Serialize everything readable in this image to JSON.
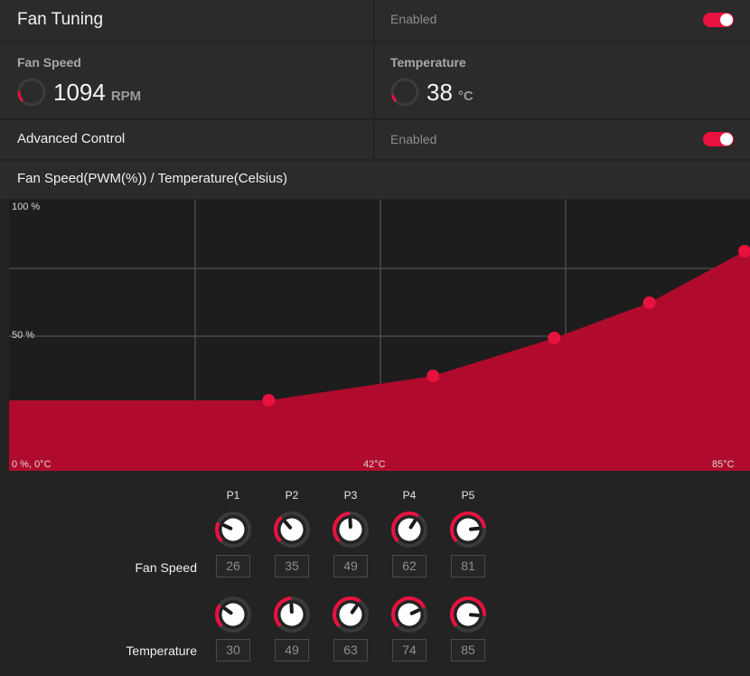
{
  "header": {
    "title": "Fan Tuning",
    "status": "Enabled",
    "toggle_on": true
  },
  "fan_speed": {
    "label": "Fan Speed",
    "value": "1094",
    "unit": "RPM",
    "gauge_fraction": 0.18
  },
  "temperature": {
    "label": "Temperature",
    "value": "38",
    "unit": "°C",
    "gauge_fraction": 0.12
  },
  "advanced": {
    "label": "Advanced Control",
    "status": "Enabled",
    "toggle_on": true
  },
  "chart_section": {
    "title": "Fan Speed(PWM(%)) / Temperature(Celsius)"
  },
  "colors": {
    "accent": "#e8123f",
    "fill": "#b00b2d",
    "background": "#232323",
    "panel": "#2b2b2b",
    "grid": "#4a4a4a"
  },
  "chart_data": {
    "type": "area",
    "title": "",
    "xlabel": "",
    "ylabel": "",
    "xlim": [
      0,
      85
    ],
    "ylim": [
      0,
      100
    ],
    "y_tick_labels": [
      "100 %",
      "50 %",
      "0 %, 0°C"
    ],
    "x_tick_labels": [
      "42°C",
      "85°C"
    ],
    "grid": true,
    "points": [
      {
        "name": "P1",
        "temperature": 30,
        "fan_speed": 26
      },
      {
        "name": "P2",
        "temperature": 49,
        "fan_speed": 35
      },
      {
        "name": "P3",
        "temperature": 63,
        "fan_speed": 49
      },
      {
        "name": "P4",
        "temperature": 74,
        "fan_speed": 62
      },
      {
        "name": "P5",
        "temperature": 85,
        "fan_speed": 81
      }
    ]
  },
  "controls": {
    "points": [
      "P1",
      "P2",
      "P3",
      "P4",
      "P5"
    ],
    "fan_speed_label": "Fan Speed",
    "temperature_label": "Temperature",
    "fan_speed_values": [
      "26",
      "35",
      "49",
      "62",
      "81"
    ],
    "temperature_values": [
      "30",
      "49",
      "63",
      "74",
      "85"
    ]
  }
}
